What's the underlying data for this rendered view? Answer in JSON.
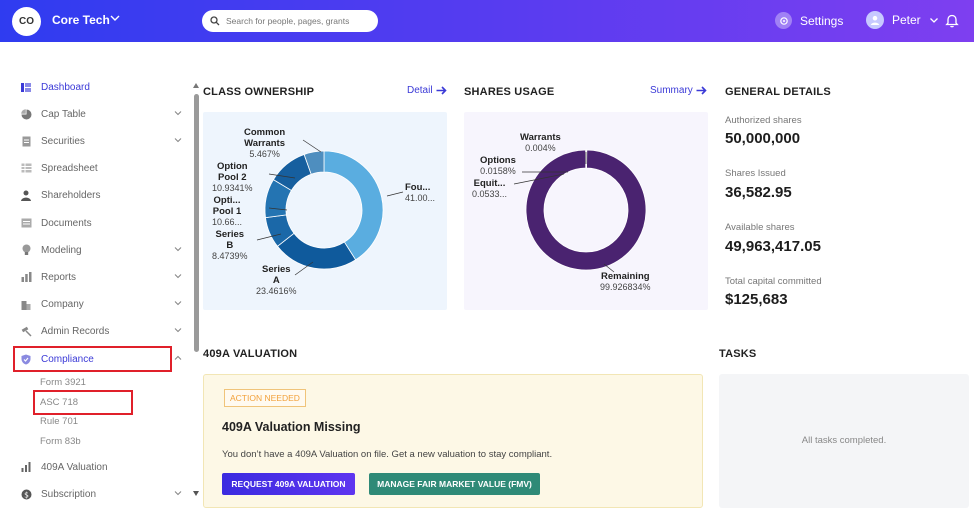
{
  "topbar": {
    "org_initials": "CO",
    "org_name": "Core Tech",
    "search_placeholder": "Search for people, pages, grants",
    "settings_label": "Settings",
    "user_name": "Peter"
  },
  "sidebar": {
    "items": [
      {
        "label": "Dashboard",
        "icon": "dashboard-icon"
      },
      {
        "label": "Cap Table",
        "icon": "pie-chart-icon"
      },
      {
        "label": "Securities",
        "icon": "document-icon"
      },
      {
        "label": "Spreadsheet",
        "icon": "spreadsheet-icon"
      },
      {
        "label": "Shareholders",
        "icon": "person-icon"
      },
      {
        "label": "Documents",
        "icon": "folder-icon"
      },
      {
        "label": "Modeling",
        "icon": "lightbulb-icon"
      },
      {
        "label": "Reports",
        "icon": "bar-chart-icon"
      },
      {
        "label": "Company",
        "icon": "building-icon"
      },
      {
        "label": "Admin Records",
        "icon": "gavel-icon"
      },
      {
        "label": "Compliance",
        "icon": "shield-icon"
      }
    ],
    "compliance_subitems": [
      "Form 3921",
      "ASC 718",
      "Rule 701",
      "Form 83b"
    ],
    "bottom_items": [
      {
        "label": "409A Valuation",
        "icon": "chart-icon"
      },
      {
        "label": "Subscription",
        "icon": "dollar-icon"
      }
    ]
  },
  "class_ownership": {
    "title": "CLASS OWNERSHIP",
    "link": "Detail",
    "labels": [
      {
        "name": "Common\nWarrants",
        "pct": "5.467%"
      },
      {
        "name": "Option\nPool 2",
        "pct": "10.9341%"
      },
      {
        "name": "Opti...\nPool 1",
        "pct": "10.66..."
      },
      {
        "name": "Series\nB",
        "pct": "8.4739%"
      },
      {
        "name": "Series\nA",
        "pct": "23.4616%"
      },
      {
        "name": "Fou...",
        "pct": "41.00..."
      }
    ]
  },
  "shares_usage": {
    "title": "SHARES USAGE",
    "link": "Summary",
    "labels": [
      {
        "name": "Warrants",
        "pct": "0.004%"
      },
      {
        "name": "Options",
        "pct": "0.0158%"
      },
      {
        "name": "Equit...",
        "pct": "0.0533..."
      },
      {
        "name": "Remaining",
        "pct": "99.926834%"
      }
    ]
  },
  "chart_data": [
    {
      "type": "pie",
      "categories": [
        "Fou...",
        "Series A",
        "Series B",
        "Option Pool 1",
        "Option Pool 2",
        "Common Warrants"
      ],
      "values": [
        41.0,
        23.4616,
        8.4739,
        10.66,
        10.9341,
        5.467
      ],
      "colors": [
        "#5aade0",
        "#0f5a9c",
        "#1b68a8",
        "#2474b2",
        "#165f9f",
        "#4e8ebf"
      ]
    },
    {
      "type": "pie",
      "categories": [
        "Remaining",
        "Warrants",
        "Options",
        "Equit..."
      ],
      "values": [
        99.926834,
        0.004,
        0.0158,
        0.0533
      ],
      "colors": [
        "#4a2370",
        "#6a3a95",
        "#5c2f86",
        "#7a4aa6"
      ]
    }
  ],
  "general_details": {
    "title": "GENERAL DETAILS",
    "items": [
      {
        "label": "Authorized shares",
        "value": "50,000,000"
      },
      {
        "label": "Shares Issued",
        "value": "36,582.95"
      },
      {
        "label": "Available shares",
        "value": "49,963,417.05"
      },
      {
        "label": "Total capital committed",
        "value": "$125,683"
      }
    ]
  },
  "valuation": {
    "title": "409A VALUATION",
    "badge": "ACTION NEEDED",
    "heading": "409A Valuation Missing",
    "text": "You don’t have a 409A Valuation on file. Get a new valuation to stay compliant.",
    "primary_button": "REQUEST 409A VALUATION",
    "secondary_button": "MANAGE FAIR MARKET VALUE (FMV)"
  },
  "tasks": {
    "title": "TASKS",
    "empty_text": "All tasks completed."
  }
}
